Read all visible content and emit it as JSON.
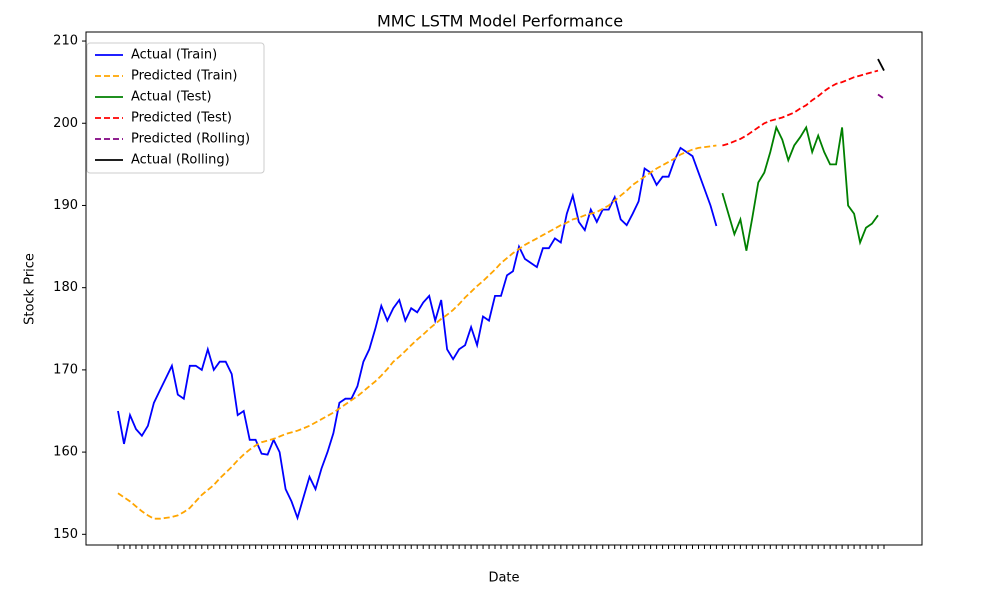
{
  "chart_data": {
    "type": "line",
    "title": "MMC LSTM Model Performance",
    "x_label": "Date",
    "y_label": "Stock Price",
    "ylim": [
      148.7,
      211.1
    ],
    "yticks": [
      150,
      160,
      170,
      180,
      190,
      200,
      210
    ],
    "legend": "upper left",
    "categories": [
      null,
      null,
      null,
      null,
      null,
      null,
      null,
      null,
      null,
      null,
      null,
      null,
      null,
      null,
      null,
      null,
      null,
      null,
      null,
      null,
      null,
      null,
      null,
      null,
      null,
      null,
      null,
      null,
      null,
      null,
      null,
      null,
      null,
      null,
      null,
      null,
      null,
      null,
      null,
      null,
      null,
      null,
      null,
      null,
      null,
      null,
      null,
      null,
      null,
      null,
      null,
      null,
      null,
      null,
      null,
      null,
      null,
      null,
      null,
      null,
      null,
      null,
      null,
      null,
      null,
      null,
      null,
      null,
      null,
      null,
      null,
      null,
      null,
      null,
      null,
      null,
      null,
      null,
      null,
      null,
      null,
      null,
      null,
      null,
      null,
      null,
      null,
      null,
      null,
      null,
      null,
      null,
      null,
      null,
      null,
      null,
      null,
      null,
      null,
      null,
      null,
      null,
      null,
      null,
      null,
      null,
      null,
      null,
      null,
      null,
      null,
      null,
      null,
      null,
      null,
      null,
      null,
      null,
      null,
      null,
      null,
      null,
      null,
      null,
      null,
      null,
      null,
      null,
      null
    ],
    "series": [
      {
        "name": "Actual (Train)",
        "color": "#0000ff",
        "linestyle": "solid",
        "values": [
          165,
          161,
          164.5,
          162.8,
          162,
          163.2,
          166,
          167.5,
          169,
          170.5,
          167,
          166.5,
          170.5,
          170.5,
          170,
          172.5,
          170,
          171,
          171,
          169.5,
          164.5,
          165,
          161.5,
          161.5,
          159.8,
          159.7,
          161.5,
          160,
          155.5,
          154,
          152,
          154.5,
          157,
          155.5,
          158,
          160,
          162.3,
          166,
          166.5,
          166.5,
          168,
          171,
          172.5,
          175,
          177.8,
          176,
          177.5,
          178.5,
          176,
          177.5,
          177,
          178.2,
          179,
          176,
          178.5,
          172.5,
          171.3,
          172.5,
          173,
          175.2,
          173,
          176.5,
          176,
          179,
          179,
          181.5,
          182,
          185,
          183.5,
          183,
          182.5,
          184.8,
          184.8,
          186,
          185.5,
          189,
          191.2,
          188,
          187,
          189.5,
          188,
          189.5,
          189.5,
          191,
          188.3,
          187.6,
          189,
          190.5,
          194.5,
          194,
          192.5,
          193.5,
          193.5,
          195.5,
          197,
          196.5,
          196,
          194,
          192,
          190,
          187.5,
          null,
          null,
          null,
          null,
          null,
          null,
          null,
          null,
          null,
          null,
          null,
          null,
          null,
          null,
          null,
          null,
          null,
          null,
          null,
          null,
          null,
          null,
          null,
          null,
          null,
          null,
          null,
          null
        ]
      },
      {
        "name": "Predicted (Train)",
        "color": "#ffa500",
        "linestyle": "dashed",
        "values": [
          155,
          154.5,
          154,
          153.4,
          152.8,
          152.3,
          151.9,
          151.9,
          152,
          152.1,
          152.3,
          152.7,
          153.2,
          154,
          154.8,
          155.4,
          156,
          156.8,
          157.5,
          158.2,
          159,
          159.7,
          160.3,
          160.8,
          161.2,
          161.4,
          161.6,
          161.9,
          162.2,
          162.4,
          162.6,
          162.9,
          163.2,
          163.6,
          164,
          164.4,
          164.8,
          165.3,
          165.8,
          166.3,
          166.8,
          167.4,
          168,
          168.6,
          169.3,
          170.1,
          171,
          171.6,
          172.3,
          173,
          173.7,
          174.3,
          175,
          175.6,
          176.2,
          176.7,
          177.3,
          178,
          178.8,
          179.5,
          180.2,
          180.8,
          181.5,
          182.2,
          183,
          183.6,
          184.2,
          184.7,
          185.2,
          185.6,
          186,
          186.4,
          186.8,
          187.2,
          187.6,
          187.9,
          188.3,
          188.5,
          188.8,
          189,
          189.2,
          189.6,
          190,
          190.6,
          191.2,
          191.8,
          192.5,
          193,
          193.5,
          194,
          194.5,
          194.9,
          195.3,
          195.7,
          196.2,
          196.5,
          196.8,
          197,
          197.1,
          197.2,
          197.3,
          null,
          null,
          null,
          null,
          null,
          null,
          null,
          null,
          null,
          null,
          null,
          null,
          null,
          null,
          null,
          null,
          null,
          null,
          null,
          null,
          null,
          null,
          null,
          null,
          null,
          null,
          null,
          null
        ]
      },
      {
        "name": "Actual (Test)",
        "color": "#008000",
        "linestyle": "solid",
        "values": [
          null,
          null,
          null,
          null,
          null,
          null,
          null,
          null,
          null,
          null,
          null,
          null,
          null,
          null,
          null,
          null,
          null,
          null,
          null,
          null,
          null,
          null,
          null,
          null,
          null,
          null,
          null,
          null,
          null,
          null,
          null,
          null,
          null,
          null,
          null,
          null,
          null,
          null,
          null,
          null,
          null,
          null,
          null,
          null,
          null,
          null,
          null,
          null,
          null,
          null,
          null,
          null,
          null,
          null,
          null,
          null,
          null,
          null,
          null,
          null,
          null,
          null,
          null,
          null,
          null,
          null,
          null,
          null,
          null,
          null,
          null,
          null,
          null,
          null,
          null,
          null,
          null,
          null,
          null,
          null,
          null,
          null,
          null,
          null,
          null,
          null,
          null,
          null,
          null,
          null,
          null,
          null,
          null,
          null,
          null,
          null,
          null,
          null,
          null,
          null,
          null,
          191.5,
          189,
          186.5,
          188.3,
          184.5,
          188.5,
          192.8,
          194,
          196.5,
          199.5,
          198,
          195.5,
          197.3,
          198.3,
          199.5,
          196.5,
          198.5,
          196.5,
          195,
          195,
          199.5,
          190,
          189,
          185.5,
          187.3,
          187.8,
          188.8,
          null
        ]
      },
      {
        "name": "Predicted (Test)",
        "color": "#ff0000",
        "linestyle": "dashed",
        "values": [
          null,
          null,
          null,
          null,
          null,
          null,
          null,
          null,
          null,
          null,
          null,
          null,
          null,
          null,
          null,
          null,
          null,
          null,
          null,
          null,
          null,
          null,
          null,
          null,
          null,
          null,
          null,
          null,
          null,
          null,
          null,
          null,
          null,
          null,
          null,
          null,
          null,
          null,
          null,
          null,
          null,
          null,
          null,
          null,
          null,
          null,
          null,
          null,
          null,
          null,
          null,
          null,
          null,
          null,
          null,
          null,
          null,
          null,
          null,
          null,
          null,
          null,
          null,
          null,
          null,
          null,
          null,
          null,
          null,
          null,
          null,
          null,
          null,
          null,
          null,
          null,
          null,
          null,
          null,
          null,
          null,
          null,
          null,
          null,
          null,
          null,
          null,
          null,
          null,
          null,
          null,
          null,
          null,
          null,
          null,
          null,
          null,
          null,
          null,
          null,
          null,
          197.3,
          197.5,
          197.8,
          198.1,
          198.5,
          199,
          199.5,
          200,
          200.3,
          200.5,
          200.7,
          201,
          201.3,
          201.8,
          202.2,
          202.8,
          203.3,
          203.9,
          204.4,
          204.8,
          205,
          205.3,
          205.6,
          205.8,
          206,
          206.2,
          206.4,
          null
        ]
      },
      {
        "name": "Predicted (Rolling)",
        "color": "#800080",
        "linestyle": "dashed",
        "values": [
          null,
          null,
          null,
          null,
          null,
          null,
          null,
          null,
          null,
          null,
          null,
          null,
          null,
          null,
          null,
          null,
          null,
          null,
          null,
          null,
          null,
          null,
          null,
          null,
          null,
          null,
          null,
          null,
          null,
          null,
          null,
          null,
          null,
          null,
          null,
          null,
          null,
          null,
          null,
          null,
          null,
          null,
          null,
          null,
          null,
          null,
          null,
          null,
          null,
          null,
          null,
          null,
          null,
          null,
          null,
          null,
          null,
          null,
          null,
          null,
          null,
          null,
          null,
          null,
          null,
          null,
          null,
          null,
          null,
          null,
          null,
          null,
          null,
          null,
          null,
          null,
          null,
          null,
          null,
          null,
          null,
          null,
          null,
          null,
          null,
          null,
          null,
          null,
          null,
          null,
          null,
          null,
          null,
          null,
          null,
          null,
          null,
          null,
          null,
          null,
          null,
          null,
          null,
          null,
          null,
          null,
          null,
          null,
          null,
          null,
          null,
          null,
          null,
          null,
          null,
          null,
          null,
          null,
          null,
          null,
          null,
          null,
          null,
          null,
          null,
          null,
          null,
          203.5,
          203.0
        ]
      },
      {
        "name": "Actual (Rolling)",
        "color": "#000000",
        "linestyle": "solid",
        "values": [
          null,
          null,
          null,
          null,
          null,
          null,
          null,
          null,
          null,
          null,
          null,
          null,
          null,
          null,
          null,
          null,
          null,
          null,
          null,
          null,
          null,
          null,
          null,
          null,
          null,
          null,
          null,
          null,
          null,
          null,
          null,
          null,
          null,
          null,
          null,
          null,
          null,
          null,
          null,
          null,
          null,
          null,
          null,
          null,
          null,
          null,
          null,
          null,
          null,
          null,
          null,
          null,
          null,
          null,
          null,
          null,
          null,
          null,
          null,
          null,
          null,
          null,
          null,
          null,
          null,
          null,
          null,
          null,
          null,
          null,
          null,
          null,
          null,
          null,
          null,
          null,
          null,
          null,
          null,
          null,
          null,
          null,
          null,
          null,
          null,
          null,
          null,
          null,
          null,
          null,
          null,
          null,
          null,
          null,
          null,
          null,
          null,
          null,
          null,
          null,
          null,
          null,
          null,
          null,
          null,
          null,
          null,
          null,
          null,
          null,
          null,
          null,
          null,
          null,
          null,
          null,
          null,
          null,
          null,
          null,
          null,
          null,
          null,
          null,
          null,
          null,
          null,
          207.8,
          206.4
        ]
      }
    ]
  }
}
